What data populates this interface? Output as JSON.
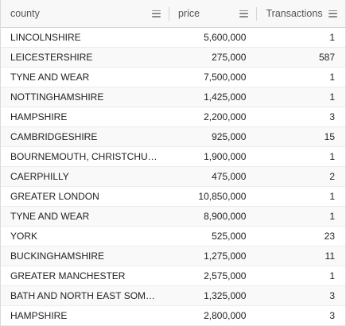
{
  "columns": [
    {
      "label": "county"
    },
    {
      "label": "price"
    },
    {
      "label": "Transactions"
    }
  ],
  "rows": [
    {
      "county": "LINCOLNSHIRE",
      "price": "5,600,000",
      "transactions": "1"
    },
    {
      "county": "LEICESTERSHIRE",
      "price": "275,000",
      "transactions": "587"
    },
    {
      "county": "TYNE AND WEAR",
      "price": "7,500,000",
      "transactions": "1"
    },
    {
      "county": "NOTTINGHAMSHIRE",
      "price": "1,425,000",
      "transactions": "1"
    },
    {
      "county": "HAMPSHIRE",
      "price": "2,200,000",
      "transactions": "3"
    },
    {
      "county": "CAMBRIDGESHIRE",
      "price": "925,000",
      "transactions": "15"
    },
    {
      "county": "BOURNEMOUTH, CHRISTCHURC...",
      "price": "1,900,000",
      "transactions": "1"
    },
    {
      "county": "CAERPHILLY",
      "price": "475,000",
      "transactions": "2"
    },
    {
      "county": "GREATER LONDON",
      "price": "10,850,000",
      "transactions": "1"
    },
    {
      "county": "TYNE AND WEAR",
      "price": "8,900,000",
      "transactions": "1"
    },
    {
      "county": "YORK",
      "price": "525,000",
      "transactions": "23"
    },
    {
      "county": "BUCKINGHAMSHIRE",
      "price": "1,275,000",
      "transactions": "11"
    },
    {
      "county": "GREATER MANCHESTER",
      "price": "2,575,000",
      "transactions": "1"
    },
    {
      "county": "BATH AND NORTH EAST SOMER...",
      "price": "1,325,000",
      "transactions": "3"
    },
    {
      "county": "HAMPSHIRE",
      "price": "2,800,000",
      "transactions": "3"
    }
  ]
}
